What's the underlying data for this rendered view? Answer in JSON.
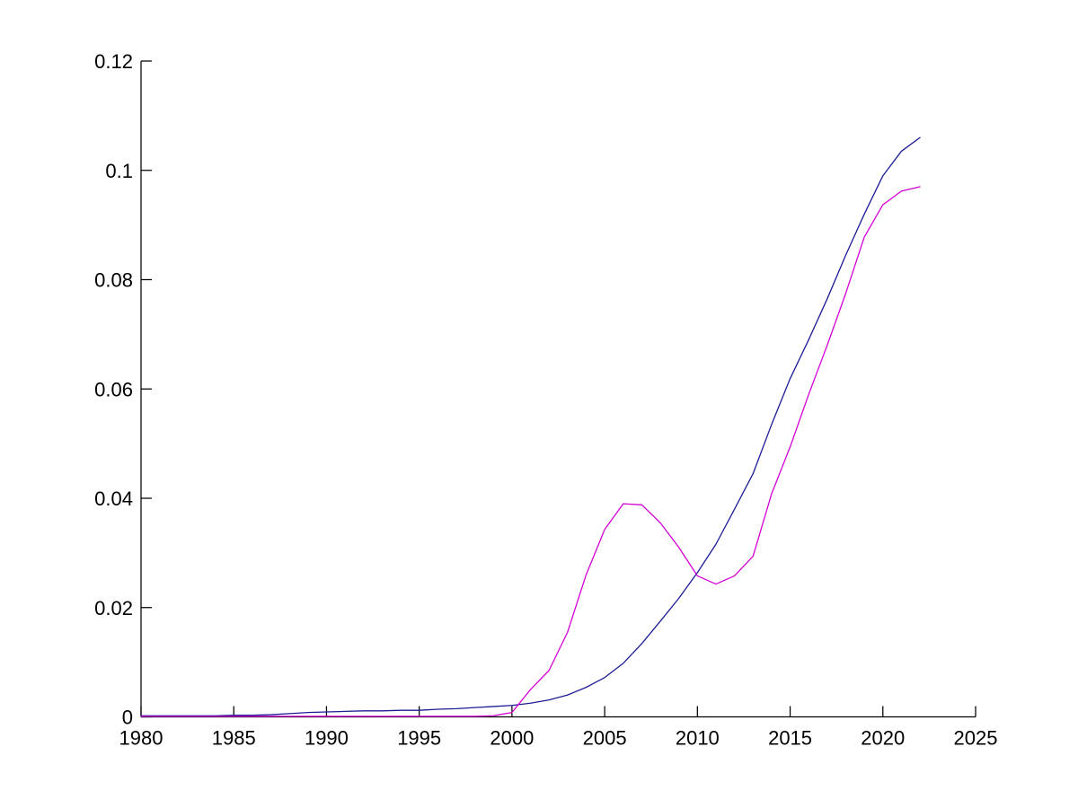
{
  "figure": {
    "background_color": "#ffffff"
  },
  "chart_data": {
    "type": "line",
    "title": "",
    "xlabel": "",
    "ylabel": "",
    "grid": false,
    "legend": "none",
    "xlim": [
      1980,
      2025
    ],
    "ylim": [
      0,
      0.12
    ],
    "xticks": [
      1980,
      1985,
      1990,
      1995,
      2000,
      2005,
      2010,
      2015,
      2020,
      2025
    ],
    "xtick_labels": [
      "1980",
      "1985",
      "1990",
      "1995",
      "2000",
      "2005",
      "2010",
      "2015",
      "2020",
      "2025"
    ],
    "yticks": [
      0,
      0.02,
      0.04,
      0.06,
      0.08,
      0.1,
      0.12
    ],
    "ytick_labels": [
      "0",
      "0.02",
      "0.04",
      "0.06",
      "0.08",
      "0.1",
      "0.12"
    ],
    "axis_color": "#000000",
    "tick_label_color": "#000000",
    "x": [
      1980,
      1981,
      1982,
      1983,
      1984,
      1985,
      1986,
      1987,
      1988,
      1989,
      1990,
      1991,
      1992,
      1993,
      1994,
      1995,
      1996,
      1997,
      1998,
      1999,
      2000,
      2001,
      2002,
      2003,
      2004,
      2005,
      2006,
      2007,
      2008,
      2009,
      2010,
      2011,
      2012,
      2013,
      2014,
      2015,
      2016,
      2017,
      2018,
      2019,
      2020,
      2021,
      2022
    ],
    "series": [
      {
        "name": "series-1-dark-blue",
        "color": "#1c1c96",
        "values": [
          0.0002,
          0.0002,
          0.0002,
          0.0002,
          0.0002,
          0.0003,
          0.0003,
          0.0004,
          0.0006,
          0.0008,
          0.0009,
          0.001,
          0.0011,
          0.0011,
          0.0012,
          0.0012,
          0.0014,
          0.0015,
          0.0017,
          0.0019,
          0.0021,
          0.0025,
          0.0031,
          0.004,
          0.0054,
          0.0072,
          0.0098,
          0.0134,
          0.0175,
          0.0217,
          0.0264,
          0.0316,
          0.038,
          0.0445,
          0.0535,
          0.0619,
          0.069,
          0.0765,
          0.0845,
          0.092,
          0.099,
          0.1035,
          0.106
        ]
      },
      {
        "name": "series-2-magenta",
        "color": "#d400d4",
        "values": [
          0.0001,
          0.0001,
          0.0001,
          0.0001,
          0.0001,
          0.0001,
          0.0001,
          0.0001,
          0.0001,
          0.0001,
          0.0001,
          0.0001,
          0.0001,
          0.0001,
          0.0001,
          0.0001,
          0.0001,
          0.0001,
          0.0001,
          0.0002,
          0.0008,
          0.005,
          0.0085,
          0.0155,
          0.026,
          0.0343,
          0.039,
          0.0388,
          0.0355,
          0.031,
          0.0258,
          0.0243,
          0.0258,
          0.0294,
          0.0408,
          0.0494,
          0.059,
          0.068,
          0.0775,
          0.0878,
          0.0937,
          0.0962,
          0.097
        ]
      }
    ]
  }
}
